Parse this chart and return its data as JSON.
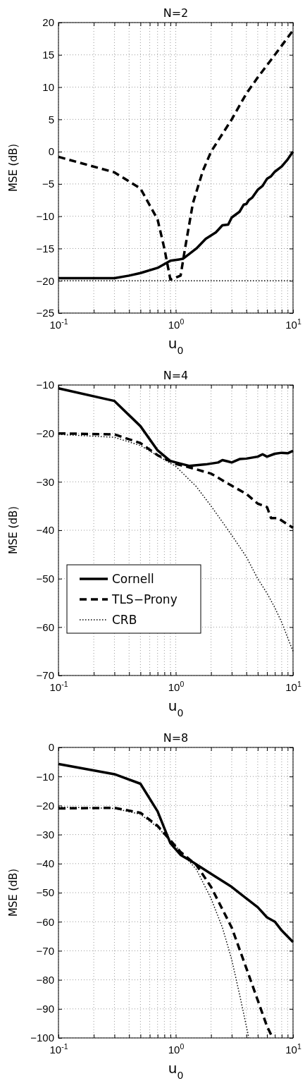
{
  "chart_data": [
    {
      "type": "line",
      "title": "N=2",
      "xlabel": "u$_{0}$",
      "ylabel": "MSE (dB)",
      "log": "x",
      "grid": true,
      "legend": false,
      "xlim": [
        0.1,
        10
      ],
      "ylim": [
        -25,
        20
      ],
      "xticks": [
        {
          "value": 0.1,
          "label": "10$^{-1}$"
        },
        {
          "value": 0.2,
          "label": null
        },
        {
          "value": 0.3,
          "label": null
        },
        {
          "value": 0.4,
          "label": null
        },
        {
          "value": 0.5,
          "label": null
        },
        {
          "value": 0.6,
          "label": null
        },
        {
          "value": 0.7,
          "label": null
        },
        {
          "value": 0.8,
          "label": null
        },
        {
          "value": 0.9,
          "label": null
        },
        {
          "value": 1,
          "label": "10$^{0}$"
        },
        {
          "value": 2,
          "label": null
        },
        {
          "value": 3,
          "label": null
        },
        {
          "value": 4,
          "label": null
        },
        {
          "value": 5,
          "label": null
        },
        {
          "value": 6,
          "label": null
        },
        {
          "value": 7,
          "label": null
        },
        {
          "value": 8,
          "label": null
        },
        {
          "value": 9,
          "label": null
        },
        {
          "value": 10,
          "label": "10$^{1}$"
        }
      ],
      "yticks": [
        -25,
        -20,
        -15,
        -10,
        -5,
        0,
        5,
        10,
        15,
        20
      ],
      "series": [
        {
          "color": "#000000",
          "line_style": "solid",
          "x": [
            0.1,
            0.3,
            0.4,
            0.5,
            0.7,
            0.9,
            1.15,
            1.5,
            1.8,
            2.2,
            2.5,
            2.8,
            3,
            3.5,
            3.8,
            4,
            4.2,
            4.5,
            5,
            5.5,
            6,
            6.5,
            7,
            8,
            9,
            10
          ],
          "values": [
            -19.6,
            -19.6,
            -19.2,
            -18.8,
            -18,
            -16.9,
            -16.6,
            -15,
            -13.5,
            -12.5,
            -11.4,
            -11.3,
            -10.2,
            -9.3,
            -8.2,
            -8.1,
            -7.5,
            -7.1,
            -5.9,
            -5.3,
            -4.2,
            -3.8,
            -3.1,
            -2.3,
            -1.2,
            0
          ]
        },
        {
          "color": "#000000",
          "line_style": "dashed",
          "x": [
            0.1,
            0.3,
            0.5,
            0.7,
            0.8,
            0.9,
            1.1,
            1.2,
            1.4,
            1.7,
            2,
            3,
            4,
            5,
            7,
            10
          ],
          "values": [
            -0.8,
            -3.2,
            -5.7,
            -10.5,
            -15,
            -19.8,
            -19.2,
            -15,
            -8,
            -3,
            0,
            5,
            9,
            11.5,
            15,
            18.8
          ]
        },
        {
          "color": "#000000",
          "line_style": "dotted",
          "x": [
            0.1,
            10
          ],
          "values": [
            -20,
            -20
          ]
        }
      ]
    },
    {
      "type": "line",
      "title": "N=4",
      "xlabel": "u$_{0}$",
      "ylabel": "MSE (dB)",
      "log": "x",
      "grid": true,
      "legend": "bottom left",
      "xlim": [
        0.1,
        10
      ],
      "ylim": [
        -70,
        -10
      ],
      "xticks": [
        {
          "value": 0.1,
          "label": "10$^{-1}$"
        },
        {
          "value": 0.2,
          "label": null
        },
        {
          "value": 0.3,
          "label": null
        },
        {
          "value": 0.4,
          "label": null
        },
        {
          "value": 0.5,
          "label": null
        },
        {
          "value": 0.6,
          "label": null
        },
        {
          "value": 0.7,
          "label": null
        },
        {
          "value": 0.8,
          "label": null
        },
        {
          "value": 0.9,
          "label": null
        },
        {
          "value": 1,
          "label": "10$^{0}$"
        },
        {
          "value": 2,
          "label": null
        },
        {
          "value": 3,
          "label": null
        },
        {
          "value": 4,
          "label": null
        },
        {
          "value": 5,
          "label": null
        },
        {
          "value": 6,
          "label": null
        },
        {
          "value": 7,
          "label": null
        },
        {
          "value": 8,
          "label": null
        },
        {
          "value": 9,
          "label": null
        },
        {
          "value": 10,
          "label": "10$^{1}$"
        }
      ],
      "yticks": [
        -70,
        -60,
        -50,
        -40,
        -30,
        -20,
        -10
      ],
      "series": [
        {
          "name": "Cornell",
          "color": "#000000",
          "line_style": "solid",
          "x": [
            0.1,
            0.3,
            0.5,
            0.7,
            0.9,
            1.3,
            1.8,
            2.3,
            2.5,
            2.8,
            3,
            3.5,
            4,
            5,
            5.5,
            6,
            7,
            8,
            9,
            10
          ],
          "values": [
            -10.7,
            -13.3,
            -18.5,
            -23.5,
            -25.7,
            -26.7,
            -26.4,
            -26,
            -25.5,
            -25.8,
            -26,
            -25.3,
            -25.2,
            -24.8,
            -24.3,
            -24.8,
            -24.2,
            -24,
            -24.1,
            -23.6
          ]
        },
        {
          "name": "TLS−Prony",
          "color": "#000000",
          "line_style": "dashed",
          "x": [
            0.1,
            0.3,
            0.5,
            0.7,
            1,
            1.3,
            2,
            3,
            4,
            5,
            6,
            6.5,
            7.5,
            8,
            10
          ],
          "values": [
            -20,
            -20.2,
            -22,
            -24.5,
            -26.3,
            -27,
            -28.3,
            -30.8,
            -32.5,
            -34.5,
            -35.2,
            -37.5,
            -37.5,
            -38,
            -39.5
          ]
        },
        {
          "name": "CRB",
          "color": "#000000",
          "line_style": "dotted",
          "x": [
            0.1,
            0.3,
            0.5,
            0.7,
            1,
            1.5,
            2,
            3,
            4,
            5,
            6,
            7,
            8,
            10
          ],
          "values": [
            -20.2,
            -20.8,
            -22.5,
            -24.6,
            -26.8,
            -31,
            -35,
            -41,
            -45.5,
            -50,
            -53,
            -56,
            -59,
            -65
          ]
        }
      ]
    },
    {
      "type": "line",
      "title": "N=8",
      "xlabel": "u$_{0}$",
      "ylabel": "MSE (dB)",
      "log": "x",
      "grid": true,
      "legend": false,
      "xlim": [
        0.1,
        10
      ],
      "ylim": [
        -100,
        0
      ],
      "xticks": [
        {
          "value": 0.1,
          "label": "10$^{-1}$"
        },
        {
          "value": 0.2,
          "label": null
        },
        {
          "value": 0.3,
          "label": null
        },
        {
          "value": 0.4,
          "label": null
        },
        {
          "value": 0.5,
          "label": null
        },
        {
          "value": 0.6,
          "label": null
        },
        {
          "value": 0.7,
          "label": null
        },
        {
          "value": 0.8,
          "label": null
        },
        {
          "value": 0.9,
          "label": null
        },
        {
          "value": 1,
          "label": "10$^{0}$"
        },
        {
          "value": 2,
          "label": null
        },
        {
          "value": 3,
          "label": null
        },
        {
          "value": 4,
          "label": null
        },
        {
          "value": 5,
          "label": null
        },
        {
          "value": 6,
          "label": null
        },
        {
          "value": 7,
          "label": null
        },
        {
          "value": 8,
          "label": null
        },
        {
          "value": 9,
          "label": null
        },
        {
          "value": 10,
          "label": "10$^{1}$"
        }
      ],
      "yticks": [
        -100,
        -90,
        -80,
        -70,
        -60,
        -50,
        -40,
        -30,
        -20,
        -10,
        0
      ],
      "series": [
        {
          "color": "#000000",
          "line_style": "solid",
          "x": [
            0.1,
            0.3,
            0.5,
            0.7,
            0.9,
            1.1,
            1.4,
            2,
            3,
            4,
            5,
            6,
            7,
            8,
            10
          ],
          "values": [
            -5.7,
            -9.2,
            -12.5,
            -22,
            -33,
            -37,
            -39.5,
            -43.5,
            -48,
            -52,
            -55,
            -58.5,
            -60,
            -63,
            -67
          ]
        },
        {
          "color": "#000000",
          "line_style": "dashed",
          "x": [
            0.1,
            0.3,
            0.5,
            0.7,
            0.9,
            1.1,
            1.5,
            2,
            3,
            4,
            5,
            6,
            6.7
          ],
          "values": [
            -21,
            -20.8,
            -22.5,
            -27,
            -32,
            -36,
            -40.5,
            -48,
            -62,
            -76,
            -87,
            -96,
            -100
          ]
        },
        {
          "color": "#000000",
          "line_style": "dotted",
          "x": [
            0.1,
            0.3,
            0.5,
            0.7,
            1,
            1.5,
            2,
            2.5,
            3,
            3.5,
            4.2
          ],
          "values": [
            -20.5,
            -21,
            -23,
            -27.5,
            -34,
            -42,
            -52,
            -62,
            -73,
            -85,
            -100
          ]
        }
      ]
    }
  ]
}
